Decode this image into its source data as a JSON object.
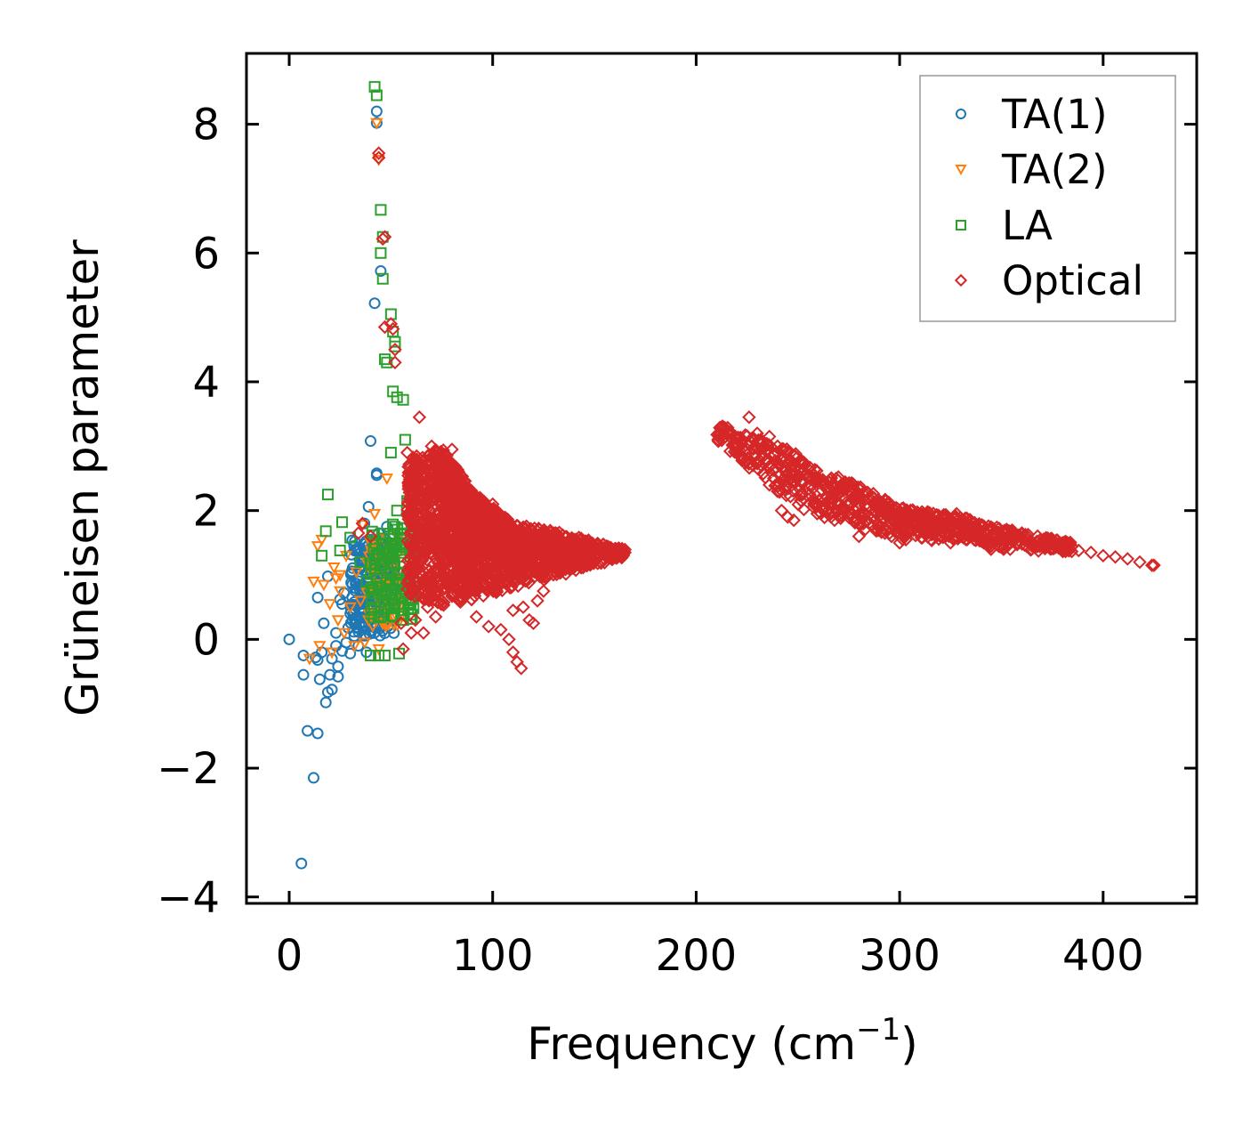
{
  "chart_data": {
    "type": "scatter",
    "title": "",
    "xlabel": "Frequency (cm",
    "xlabel_sup": "−1",
    "xlabel_end": ")",
    "ylabel": "Grüneisen parameter",
    "xlim": [
      -21,
      446
    ],
    "ylim": [
      -4.1,
      9.1
    ],
    "xticks": [
      0,
      100,
      200,
      300,
      400
    ],
    "yticks": [
      -4,
      -2,
      0,
      2,
      4,
      6,
      8
    ],
    "ytick_labels": [
      "−4",
      "−2",
      "0",
      "2",
      "4",
      "6",
      "8"
    ],
    "xtick_labels": [
      "0",
      "100",
      "200",
      "300",
      "400"
    ],
    "legend_position": "top-right",
    "series": [
      {
        "name": "TA(1)",
        "marker": "circle",
        "color": "#1f77b4",
        "points": [
          [
            0,
            0
          ],
          [
            6,
            -3.48
          ],
          [
            7,
            -0.55
          ],
          [
            7,
            -0.25
          ],
          [
            9,
            -1.42
          ],
          [
            12,
            -2.15
          ],
          [
            13,
            -0.28
          ],
          [
            14,
            -0.32
          ],
          [
            14,
            -1.46
          ],
          [
            14,
            0.65
          ],
          [
            15,
            -0.62
          ],
          [
            16,
            -0.2
          ],
          [
            17,
            0.25
          ],
          [
            18,
            -0.98
          ],
          [
            19,
            -0.82
          ],
          [
            19,
            0.98
          ],
          [
            20,
            -0.55
          ],
          [
            21,
            -0.78
          ],
          [
            21,
            -0.3
          ],
          [
            23,
            -0.1
          ],
          [
            23,
            0.1
          ],
          [
            24,
            -0.58
          ],
          [
            24,
            -0.42
          ],
          [
            25,
            0.62
          ],
          [
            26,
            0.55
          ],
          [
            26,
            -0.18
          ],
          [
            27,
            0.72
          ],
          [
            28,
            -0.05
          ],
          [
            29,
            0.18
          ],
          [
            30,
            0.4
          ],
          [
            30,
            -0.22
          ],
          [
            31,
            0.85
          ],
          [
            32,
            0.58
          ],
          [
            32,
            0.05
          ],
          [
            33,
            0.3
          ],
          [
            34,
            0.95
          ],
          [
            34,
            -0.1
          ],
          [
            35,
            0.48
          ],
          [
            35,
            1.1
          ],
          [
            36,
            0.2
          ],
          [
            36,
            0.75
          ],
          [
            37,
            1.8
          ],
          [
            37,
            0.35
          ],
          [
            38,
            0.62
          ],
          [
            38,
            -0.2
          ],
          [
            39,
            1.25
          ],
          [
            39,
            2.06
          ],
          [
            39,
            0.9
          ],
          [
            40,
            3.08
          ],
          [
            40,
            0.45
          ],
          [
            40,
            1.55
          ],
          [
            41,
            0.2
          ],
          [
            41,
            0.75
          ],
          [
            42,
            5.22
          ],
          [
            42,
            1.02
          ],
          [
            42,
            1.4
          ],
          [
            43,
            8.2
          ],
          [
            43,
            8.02
          ],
          [
            43,
            2.58
          ],
          [
            43,
            2.55
          ],
          [
            43,
            0.55
          ],
          [
            44,
            1.65
          ],
          [
            44,
            0.3
          ],
          [
            45,
            5.72
          ],
          [
            45,
            1.2
          ],
          [
            45,
            0.85
          ],
          [
            46,
            1.45
          ],
          [
            47,
            0.6
          ],
          [
            48,
            1.75
          ],
          [
            48,
            1.1
          ],
          [
            50,
            1.3
          ],
          [
            52,
            0.95
          ]
        ],
        "cluster": {
          "x": [
            30,
            52
          ],
          "y": [
            0.05,
            1.55
          ],
          "n": 220
        }
      },
      {
        "name": "TA(2)",
        "marker": "triangle-down",
        "color": "#ff7f0e",
        "points": [
          [
            10,
            -0.3
          ],
          [
            12,
            0.9
          ],
          [
            14,
            1.45
          ],
          [
            15,
            -0.1
          ],
          [
            16,
            1.55
          ],
          [
            17,
            0.85
          ],
          [
            20,
            0.55
          ],
          [
            21,
            -0.2
          ],
          [
            22,
            1.12
          ],
          [
            23,
            0.95
          ],
          [
            24,
            0.3
          ],
          [
            25,
            0.75
          ],
          [
            25,
            1.0
          ],
          [
            27,
            0.1
          ],
          [
            28,
            1.3
          ],
          [
            30,
            0.5
          ],
          [
            32,
            -0.1
          ],
          [
            33,
            1.05
          ],
          [
            35,
            0.6
          ],
          [
            36,
            1.78
          ],
          [
            37,
            -0.05
          ],
          [
            38,
            1.2
          ],
          [
            39,
            0.3
          ],
          [
            40,
            1.5
          ],
          [
            41,
            0.8
          ],
          [
            42,
            1.95
          ],
          [
            43,
            8.02
          ],
          [
            44,
            7.45
          ],
          [
            44,
            -0.15
          ],
          [
            45,
            0.55
          ],
          [
            46,
            1.0
          ],
          [
            47,
            1.25
          ],
          [
            48,
            2.5
          ],
          [
            49,
            0.4
          ],
          [
            50,
            0.9
          ],
          [
            51,
            1.5
          ],
          [
            52,
            1.2
          ],
          [
            53,
            1.6
          ],
          [
            54,
            1.35
          ],
          [
            56,
            1.4
          ]
        ],
        "cluster": {
          "x": [
            38,
            56
          ],
          "y": [
            0.2,
            1.6
          ],
          "n": 60
        }
      },
      {
        "name": "LA",
        "marker": "square",
        "color": "#2ca02c",
        "points": [
          [
            16,
            1.3
          ],
          [
            18,
            1.68
          ],
          [
            19,
            2.25
          ],
          [
            25,
            1.38
          ],
          [
            26,
            1.82
          ],
          [
            30,
            1.58
          ],
          [
            35,
            1.2
          ],
          [
            38,
            0.9
          ],
          [
            40,
            -0.25
          ],
          [
            42,
            8.58
          ],
          [
            43,
            8.45
          ],
          [
            45,
            6.67
          ],
          [
            45,
            6.0
          ],
          [
            46,
            6.25
          ],
          [
            46,
            5.6
          ],
          [
            47,
            4.35
          ],
          [
            48,
            4.3
          ],
          [
            49,
            0.6
          ],
          [
            50,
            5.05
          ],
          [
            50,
            2.9
          ],
          [
            51,
            4.78
          ],
          [
            51,
            3.85
          ],
          [
            52,
            4.55
          ],
          [
            52,
            4.62
          ],
          [
            53,
            3.76
          ],
          [
            53,
            2.0
          ],
          [
            54,
            0.85
          ],
          [
            55,
            1.5
          ],
          [
            56,
            3.72
          ],
          [
            57,
            3.1
          ],
          [
            58,
            2.15
          ],
          [
            58,
            1.0
          ],
          [
            60,
            1.6
          ],
          [
            60,
            1.4
          ],
          [
            44,
            -0.25
          ],
          [
            47,
            -0.25
          ],
          [
            54,
            -0.22
          ]
        ],
        "cluster": {
          "x": [
            40,
            62
          ],
          "y": [
            0.3,
            1.8
          ],
          "n": 140
        }
      },
      {
        "name": "Optical",
        "marker": "diamond",
        "color": "#d62728",
        "points": [
          [
            34,
            1.65
          ],
          [
            36,
            1.8
          ],
          [
            40,
            1.6
          ],
          [
            44,
            7.55
          ],
          [
            44,
            7.48
          ],
          [
            46,
            6.22
          ],
          [
            47,
            6.25
          ],
          [
            47,
            4.85
          ],
          [
            50,
            4.9
          ],
          [
            51,
            4.82
          ],
          [
            52,
            4.3
          ],
          [
            52,
            4.5
          ],
          [
            64,
            3.45
          ],
          [
            58,
            2.9
          ],
          [
            62,
            2.7
          ],
          [
            70,
            3.0
          ],
          [
            80,
            2.95
          ],
          [
            84,
            2.4
          ],
          [
            88,
            2.2
          ],
          [
            94,
            2.0
          ],
          [
            96,
            2.0
          ],
          [
            100,
            2.1
          ],
          [
            104,
            1.9
          ],
          [
            110,
            1.5
          ],
          [
            120,
            1.4
          ],
          [
            130,
            1.5
          ],
          [
            140,
            1.55
          ],
          [
            150,
            1.3
          ],
          [
            160,
            1.35
          ],
          [
            163,
            1.33
          ],
          [
            85,
            0.65
          ],
          [
            92,
            0.35
          ],
          [
            98,
            0.2
          ],
          [
            104,
            0.15
          ],
          [
            108,
            0.0
          ],
          [
            110,
            -0.2
          ],
          [
            112,
            -0.35
          ],
          [
            114,
            -0.45
          ],
          [
            110,
            0.45
          ],
          [
            115,
            0.5
          ],
          [
            118,
            0.3
          ],
          [
            120,
            0.25
          ],
          [
            122,
            0.6
          ],
          [
            125,
            0.75
          ],
          [
            72,
            0.35
          ],
          [
            75,
            0.6
          ],
          [
            68,
            0.5
          ],
          [
            65,
            0.8
          ],
          [
            62,
            0.3
          ],
          [
            60,
            0.1
          ],
          [
            55,
            0.25
          ],
          [
            56,
            -0.15
          ],
          [
            66,
            0.1
          ],
          [
            226,
            3.45
          ],
          [
            230,
            3.2
          ],
          [
            236,
            3.15
          ],
          [
            240,
            3.0
          ],
          [
            243,
            2.95
          ],
          [
            248,
            2.85
          ],
          [
            252,
            2.75
          ],
          [
            258,
            2.55
          ],
          [
            262,
            2.45
          ],
          [
            268,
            2.4
          ],
          [
            273,
            2.35
          ],
          [
            280,
            2.25
          ],
          [
            285,
            2.2
          ],
          [
            290,
            2.1
          ],
          [
            295,
            2.0
          ],
          [
            300,
            1.95
          ],
          [
            305,
            1.9
          ],
          [
            310,
            1.88
          ],
          [
            316,
            1.85
          ],
          [
            322,
            1.85
          ],
          [
            328,
            1.95
          ],
          [
            334,
            1.78
          ],
          [
            340,
            1.65
          ],
          [
            346,
            1.6
          ],
          [
            352,
            1.55
          ],
          [
            358,
            1.5
          ],
          [
            365,
            1.45
          ],
          [
            372,
            1.45
          ],
          [
            380,
            1.4
          ],
          [
            388,
            1.38
          ],
          [
            394,
            1.35
          ],
          [
            400,
            1.3
          ],
          [
            406,
            1.28
          ],
          [
            412,
            1.25
          ],
          [
            418,
            1.2
          ],
          [
            424,
            1.15
          ],
          [
            425,
            1.15
          ],
          [
            232,
            2.7
          ],
          [
            236,
            2.4
          ],
          [
            240,
            2.3
          ],
          [
            242,
            2.0
          ],
          [
            245,
            1.9
          ],
          [
            248,
            1.85
          ],
          [
            256,
            2.4
          ],
          [
            258,
            2.1
          ],
          [
            265,
            2.0
          ],
          [
            268,
            1.85
          ],
          [
            272,
            1.95
          ],
          [
            280,
            1.6
          ],
          [
            285,
            1.8
          ],
          [
            290,
            1.75
          ],
          [
            296,
            1.6
          ],
          [
            300,
            1.5
          ],
          [
            305,
            1.7
          ],
          [
            318,
            1.6
          ],
          [
            325,
            1.5
          ],
          [
            330,
            1.6
          ],
          [
            345,
            1.45
          ]
        ],
        "bands": [
          {
            "x": [
              58,
              75
            ],
            "lo": [
              0.7,
              0.5
            ],
            "hi": [
              2.8,
              3.0
            ],
            "n": 420
          },
          {
            "x": [
              75,
              90
            ],
            "lo": [
              0.5,
              0.6
            ],
            "hi": [
              3.0,
              2.3
            ],
            "n": 520
          },
          {
            "x": [
              90,
              110
            ],
            "lo": [
              0.6,
              0.8
            ],
            "hi": [
              2.3,
              1.8
            ],
            "n": 420
          },
          {
            "x": [
              110,
              135
            ],
            "lo": [
              0.8,
              1.0
            ],
            "hi": [
              1.8,
              1.65
            ],
            "n": 300
          },
          {
            "x": [
              135,
              165
            ],
            "lo": [
              1.0,
              1.28
            ],
            "hi": [
              1.65,
              1.4
            ],
            "n": 200
          },
          {
            "x": [
              210,
              250
            ],
            "lo": [
              3.1,
              2.0
            ],
            "hi": [
              3.35,
              2.9
            ],
            "n": 160
          },
          {
            "x": [
              250,
              300
            ],
            "lo": [
              2.0,
              1.55
            ],
            "hi": [
              2.8,
              2.1
            ],
            "n": 220
          },
          {
            "x": [
              300,
              340
            ],
            "lo": [
              1.55,
              1.5
            ],
            "hi": [
              2.05,
              1.85
            ],
            "n": 200
          },
          {
            "x": [
              340,
              385
            ],
            "lo": [
              1.4,
              1.35
            ],
            "hi": [
              1.8,
              1.5
            ],
            "n": 160
          }
        ]
      }
    ]
  }
}
